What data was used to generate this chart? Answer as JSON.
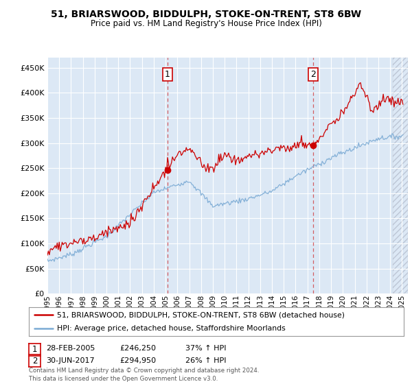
{
  "title": "51, BRIARSWOOD, BIDDULPH, STOKE-ON-TRENT, ST8 6BW",
  "subtitle": "Price paid vs. HM Land Registry's House Price Index (HPI)",
  "legend_line1": "51, BRIARSWOOD, BIDDULPH, STOKE-ON-TRENT, ST8 6BW (detached house)",
  "legend_line2": "HPI: Average price, detached house, Staffordshire Moorlands",
  "annotation1_label": "1",
  "annotation1_date": "28-FEB-2005",
  "annotation1_price": "£246,250",
  "annotation1_hpi": "37% ↑ HPI",
  "annotation2_label": "2",
  "annotation2_date": "30-JUN-2017",
  "annotation2_price": "£294,950",
  "annotation2_hpi": "26% ↑ HPI",
  "footer": "Contains HM Land Registry data © Crown copyright and database right 2024.\nThis data is licensed under the Open Government Licence v3.0.",
  "sale1_year": 2005.16,
  "sale1_price": 246250,
  "sale2_year": 2017.5,
  "sale2_price": 294950,
  "hpi_color": "#7aaad4",
  "price_color": "#cc0000",
  "background_color": "#dce8f5",
  "grid_color": "#ffffff",
  "ylim_min": 0,
  "ylim_max": 470000,
  "xlim_min": 1995,
  "xlim_max": 2025.5
}
